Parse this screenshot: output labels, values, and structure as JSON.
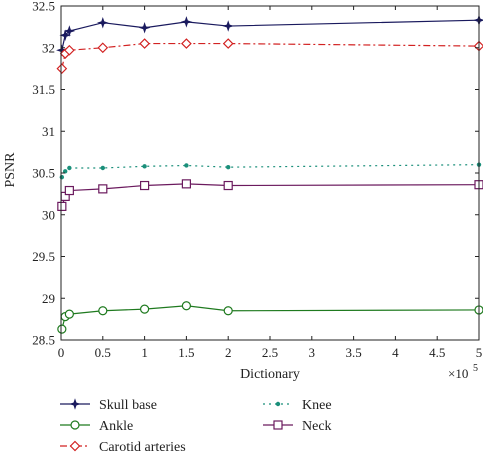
{
  "chart_data": {
    "type": "line",
    "xlabel": "Dictionary",
    "ylabel": "PSNR",
    "x_multiplier_label": "×10",
    "x_multiplier_exp": "5",
    "xlim": [
      0,
      5
    ],
    "ylim": [
      28.5,
      32.5
    ],
    "xticks": [
      "0",
      "0.5",
      "1",
      "1.5",
      "2",
      "2.5",
      "3",
      "3.5",
      "4",
      "4.5",
      "5"
    ],
    "yticks": [
      "28.5",
      "29",
      "29.5",
      "30",
      "30.5",
      "31",
      "31.5",
      "32",
      "32.5"
    ],
    "x": [
      0.01,
      0.05,
      0.1,
      0.5,
      1,
      1.5,
      2,
      5
    ],
    "series": [
      {
        "name": "Skull base",
        "values": [
          31.97,
          32.15,
          32.2,
          32.3,
          32.24,
          32.31,
          32.26,
          32.33
        ],
        "color": "#1a1a5e",
        "marker": "star",
        "dash": ""
      },
      {
        "name": "Knee",
        "values": [
          30.45,
          30.52,
          30.56,
          30.56,
          30.58,
          30.59,
          30.57,
          30.6
        ],
        "color": "#1a8f7a",
        "marker": "dot",
        "dash": "2,4"
      },
      {
        "name": "Ankle",
        "values": [
          28.63,
          28.78,
          28.81,
          28.85,
          28.87,
          28.91,
          28.85,
          28.86
        ],
        "color": "#1f7a1f",
        "marker": "circle",
        "dash": ""
      },
      {
        "name": "Neck",
        "values": [
          30.1,
          30.22,
          30.29,
          30.31,
          30.35,
          30.37,
          30.35,
          30.36
        ],
        "color": "#6b1a5e",
        "marker": "square",
        "dash": ""
      },
      {
        "name": "Carotid arteries",
        "values": [
          31.75,
          31.93,
          31.97,
          32.0,
          32.05,
          32.05,
          32.05,
          32.02
        ],
        "color": "#d22222",
        "marker": "diamond",
        "dash": "7,3,2,3"
      }
    ],
    "legend_position": "bottom",
    "grid": false
  }
}
